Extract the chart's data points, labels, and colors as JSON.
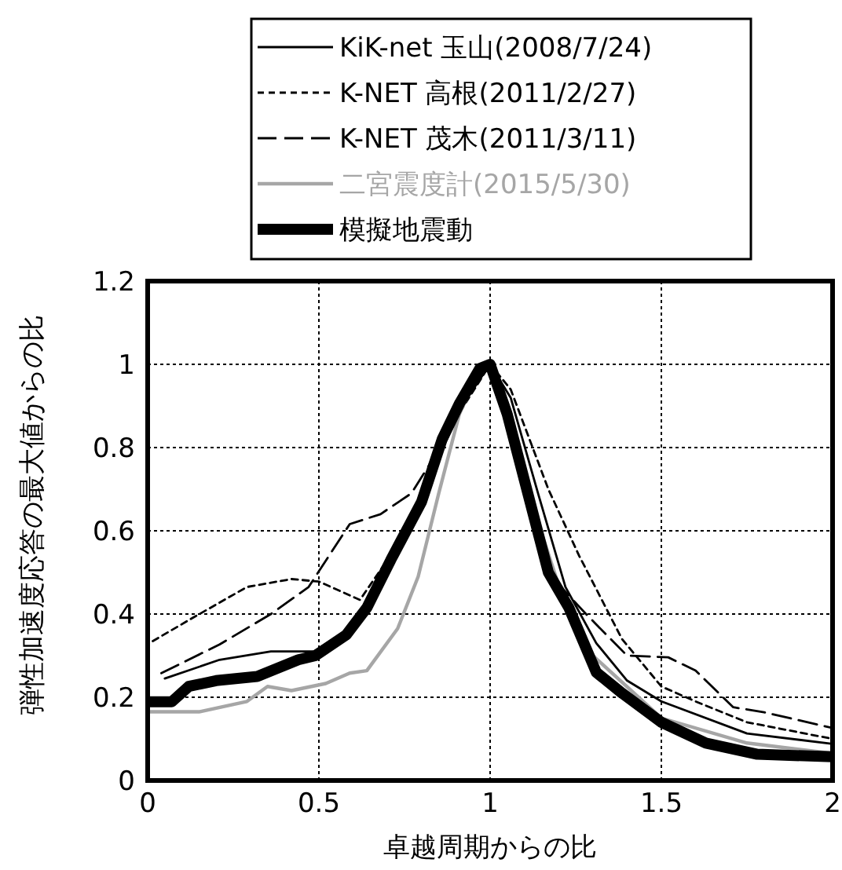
{
  "chart_data": {
    "type": "line",
    "xlabel": "卓越周期からの比",
    "ylabel": "弾性加速度応答の最大値からの比",
    "xlim": [
      0,
      2
    ],
    "xticks": [
      0,
      0.5,
      1,
      1.5,
      2
    ],
    "ylim": [
      0,
      1.2
    ],
    "yticks": [
      0,
      0.2,
      0.4,
      0.6,
      0.8,
      1,
      1.2
    ],
    "grid": true,
    "legend": "top",
    "series": [
      {
        "name": "KiK-net 玉山(2008/7/24)",
        "color": "#000000",
        "line_style": "solid",
        "x": [
          0.05,
          0.21,
          0.36,
          0.485,
          0.6,
          0.7,
          0.8,
          0.9,
          1.0,
          1.06,
          1.14,
          1.22,
          1.31,
          1.4,
          1.5,
          1.75,
          2.0
        ],
        "values": [
          0.245,
          0.29,
          0.31,
          0.31,
          0.37,
          0.52,
          0.68,
          0.88,
          1.0,
          0.92,
          0.69,
          0.465,
          0.33,
          0.24,
          0.19,
          0.113,
          0.088
        ]
      },
      {
        "name": "K-NET 高根(2011/2/27)",
        "color": "#000000",
        "line_style": "dotted",
        "x": [
          0.015,
          0.13,
          0.29,
          0.42,
          0.5,
          0.62,
          0.7,
          0.8,
          0.9,
          1.0,
          1.06,
          1.17,
          1.26,
          1.385,
          1.5,
          1.6,
          1.75,
          2.0
        ],
        "values": [
          0.335,
          0.39,
          0.465,
          0.484,
          0.478,
          0.434,
          0.53,
          0.68,
          0.87,
          1.0,
          0.94,
          0.7,
          0.54,
          0.34,
          0.226,
          0.19,
          0.14,
          0.1
        ]
      },
      {
        "name": "K-NET 茂木(2011/3/11)",
        "color": "#000000",
        "line_style": "dashed",
        "x": [
          0.04,
          0.21,
          0.36,
          0.47,
          0.59,
          0.68,
          0.77,
          0.82,
          0.9,
          1.0,
          1.05,
          1.11,
          1.14,
          1.19,
          1.28,
          1.34,
          1.4,
          1.52,
          1.6,
          1.71,
          1.8,
          2.0
        ],
        "values": [
          0.258,
          0.327,
          0.4,
          0.465,
          0.616,
          0.64,
          0.69,
          0.755,
          0.88,
          1.0,
          0.88,
          0.667,
          0.59,
          0.48,
          0.4,
          0.35,
          0.3,
          0.296,
          0.264,
          0.176,
          0.164,
          0.126
        ]
      },
      {
        "name": "二宮震度計(2015/5/30)",
        "color": "#a6a6a6",
        "line_style": "solid",
        "x": [
          0,
          0.15,
          0.29,
          0.35,
          0.42,
          0.52,
          0.59,
          0.64,
          0.73,
          0.79,
          0.85,
          0.91,
          0.96,
          1.0,
          1.1,
          1.2,
          1.3,
          1.5,
          1.75,
          2.0
        ],
        "values": [
          0.165,
          0.165,
          0.19,
          0.226,
          0.216,
          0.233,
          0.258,
          0.264,
          0.365,
          0.49,
          0.69,
          0.88,
          0.97,
          1.0,
          0.72,
          0.47,
          0.3,
          0.15,
          0.09,
          0.065
        ]
      },
      {
        "name": "模擬地震動",
        "color": "#000000",
        "line_style": "solid",
        "x": [
          0,
          0.07,
          0.12,
          0.2,
          0.32,
          0.44,
          0.49,
          0.58,
          0.64,
          0.71,
          0.8,
          0.86,
          0.91,
          0.97,
          1.0,
          1.05,
          1.11,
          1.17,
          1.23,
          1.31,
          1.385,
          1.5,
          1.63,
          1.78,
          2.0
        ],
        "values": [
          0.189,
          0.189,
          0.226,
          0.24,
          0.25,
          0.29,
          0.3,
          0.35,
          0.415,
          0.53,
          0.67,
          0.82,
          0.905,
          0.99,
          1.0,
          0.88,
          0.69,
          0.5,
          0.415,
          0.26,
          0.21,
          0.14,
          0.09,
          0.063,
          0.057
        ]
      }
    ]
  }
}
